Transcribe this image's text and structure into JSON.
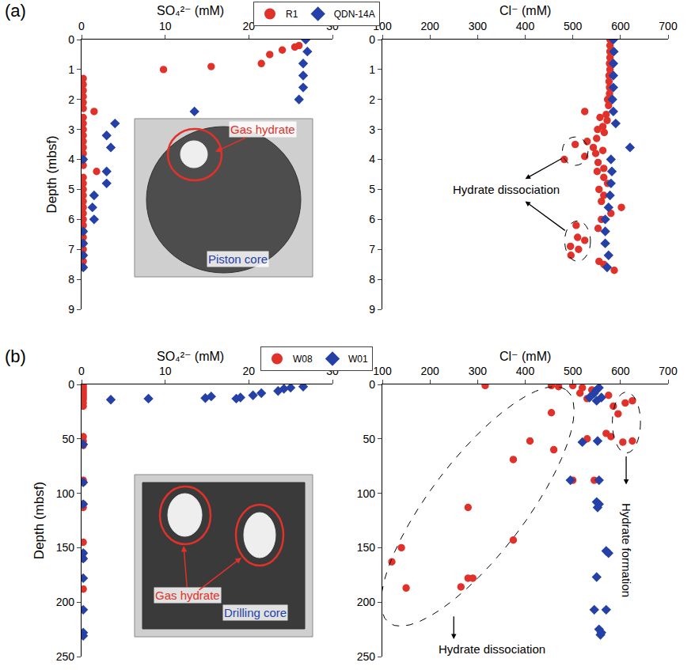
{
  "chart_data": [
    {
      "panel": "(a)",
      "type": "scatter",
      "x_label": "SO₄²⁻ (mM)",
      "y_label": "Depth (mbsf)",
      "xlim": [
        0,
        30
      ],
      "xticks": [
        0,
        10,
        20,
        30
      ],
      "ylim": [
        0,
        9
      ],
      "yticks": [
        0,
        1,
        2,
        3,
        4,
        5,
        6,
        7,
        8,
        9
      ],
      "legend": "top",
      "inset": {
        "hydrate": "Gas hydrate",
        "core": "Piston core"
      },
      "series": [
        {
          "name": "R1",
          "color": "#e0322a",
          "marker": "open-circle",
          "x": [
            26,
            25.5,
            24,
            22.5,
            21.5,
            15.5,
            9.8,
            0.2,
            0.2,
            0.2,
            0.2,
            0.2,
            0.2,
            1.5,
            0.2,
            0.2,
            0.2,
            0.2,
            0.2,
            0.2,
            0.2,
            0.2,
            0.2,
            1.8,
            0.2,
            0.2,
            0.2,
            0.2,
            0.2,
            0.2,
            0.2,
            0.2,
            0.2,
            0.2,
            0.2,
            0.2,
            0.2,
            0.2,
            0.2,
            0.2
          ],
          "y": [
            0.2,
            0.25,
            0.35,
            0.5,
            0.8,
            0.9,
            1.0,
            1.3,
            1.5,
            1.7,
            1.9,
            2.1,
            2.3,
            2.4,
            2.6,
            2.8,
            3.0,
            3.2,
            3.4,
            3.6,
            3.8,
            4.0,
            4.2,
            4.4,
            4.6,
            4.8,
            5.0,
            5.2,
            5.4,
            5.6,
            5.8,
            6.0,
            6.2,
            6.4,
            6.6,
            6.8,
            7.0,
            7.2,
            7.4,
            7.6
          ]
        },
        {
          "name": "QDN-14A",
          "color": "#2541a8",
          "marker": "diamond",
          "x": [
            26.8,
            27,
            26.5,
            26.5,
            26.5,
            26,
            13.5,
            4,
            3,
            3.5,
            0.2,
            3,
            3,
            1.5,
            1.3,
            1.5,
            0.2,
            0.2,
            0.2,
            0.2
          ],
          "y": [
            0.0,
            0.4,
            0.8,
            1.2,
            1.6,
            2.0,
            2.4,
            2.8,
            3.2,
            3.6,
            4.0,
            4.4,
            4.8,
            5.2,
            5.6,
            6.0,
            6.4,
            6.8,
            7.2,
            7.6
          ]
        }
      ]
    },
    {
      "type": "scatter",
      "x_label": "Cl⁻ (mM)",
      "xlim": [
        100,
        700
      ],
      "xticks": [
        100,
        200,
        300,
        400,
        500,
        600,
        700
      ],
      "ylim": [
        0,
        9
      ],
      "yticks": [
        0,
        1,
        2,
        3,
        4,
        5,
        6,
        7,
        8,
        9
      ],
      "annotations": [
        {
          "text": "Hydrate dissociation"
        }
      ],
      "series": [
        {
          "name": "R1",
          "color": "#e0322a",
          "marker": "open-circle",
          "x": [
            578,
            578,
            578,
            578,
            577,
            578,
            576,
            576,
            577,
            577,
            573,
            575,
            525,
            570,
            557,
            572,
            563,
            552,
            566,
            550,
            530,
            505,
            543,
            563,
            548,
            525,
            482,
            553,
            565,
            551,
            565,
            573,
            555,
            565,
            560,
            602,
            580,
            560,
            507,
            553,
            510,
            525,
            495,
            512,
            496,
            555,
            565,
            587
          ],
          "y": [
            0.0,
            0.2,
            0.4,
            0.6,
            0.8,
            1.0,
            1.2,
            1.4,
            1.6,
            1.8,
            2.0,
            2.2,
            2.4,
            2.5,
            2.6,
            2.7,
            2.9,
            3.0,
            3.1,
            3.3,
            3.4,
            3.5,
            3.6,
            3.7,
            3.8,
            3.9,
            4.0,
            4.1,
            4.3,
            4.4,
            4.6,
            4.8,
            5.0,
            5.2,
            5.4,
            5.6,
            5.8,
            6.0,
            6.2,
            6.3,
            6.6,
            6.7,
            6.9,
            7.0,
            7.2,
            7.4,
            7.5,
            7.7
          ]
        },
        {
          "name": "QDN-14A",
          "color": "#2541a8",
          "marker": "diamond",
          "x": [
            585,
            586,
            585,
            585,
            585,
            583,
            585,
            590,
            620,
            580,
            582,
            580,
            578,
            575,
            568,
            568,
            568,
            575,
            572
          ],
          "y": [
            0.0,
            0.4,
            0.8,
            1.2,
            1.6,
            2.0,
            2.4,
            2.8,
            3.6,
            4.0,
            4.4,
            4.8,
            5.2,
            5.6,
            6.0,
            6.4,
            6.8,
            7.2,
            7.6
          ]
        }
      ]
    },
    {
      "panel": "(b)",
      "type": "scatter",
      "x_label": "SO₄²⁻ (mM)",
      "y_label": "Depth (mbsf)",
      "xlim": [
        0,
        30
      ],
      "xticks": [
        0,
        10,
        20,
        30
      ],
      "ylim": [
        0,
        250
      ],
      "yticks": [
        0,
        50,
        100,
        150,
        200,
        250
      ],
      "legend": "top",
      "inset": {
        "hydrate": "Gas hydrate",
        "core": "Drilling core"
      },
      "series": [
        {
          "name": "W08",
          "color": "#e0322a",
          "marker": "open-circle",
          "x": [
            0.2,
            0.2,
            0.2,
            0.2,
            0.2,
            0.2,
            0.2,
            0.2,
            0.2,
            0.2,
            0.2,
            0.2,
            0.2,
            0.2,
            0.2,
            0.2,
            0.2,
            0.2,
            0.2,
            0.2,
            0.2
          ],
          "y": [
            0,
            2,
            4,
            6,
            8,
            10,
            12,
            14,
            17,
            20,
            48,
            52,
            56,
            88,
            90,
            110,
            113,
            145,
            155,
            160,
            188
          ]
        },
        {
          "name": "W01",
          "color": "#2541a8",
          "marker": "diamond",
          "x": [
            26.5,
            25,
            24.2,
            23.5,
            21.5,
            20.5,
            19,
            18.5,
            15.5,
            14.8,
            8,
            3.5,
            0.2,
            0.2,
            0.2,
            0.2,
            0.2,
            0.2,
            0.2,
            0.2,
            0.2
          ],
          "y": [
            2,
            3,
            4,
            6,
            8,
            10,
            12,
            13,
            11,
            12.5,
            13,
            14,
            55,
            90,
            110,
            155,
            160,
            178,
            207,
            228,
            231
          ]
        }
      ]
    },
    {
      "type": "scatter",
      "x_label": "Cl⁻ (mM)",
      "xlim": [
        100,
        700
      ],
      "xticks": [
        100,
        200,
        300,
        400,
        500,
        600,
        700
      ],
      "ylim": [
        0,
        250
      ],
      "yticks": [
        0,
        50,
        100,
        150,
        200,
        250
      ],
      "annotations": [
        {
          "text": "Hydrate dissociation"
        },
        {
          "text": "Hydrate formation"
        }
      ],
      "series": [
        {
          "name": "W08",
          "color": "#e0322a",
          "marker": "open-circle",
          "x": [
            316,
            455,
            470,
            500,
            520,
            540,
            515,
            530,
            575,
            610,
            625,
            585,
            595,
            455,
            625,
            605,
            570,
            580,
            530,
            410,
            460,
            375,
            500,
            545,
            280,
            375,
            140,
            120,
            150,
            280,
            265,
            290
          ],
          "y": [
            1,
            1,
            2,
            1,
            3,
            5,
            8,
            13,
            10,
            17,
            15,
            20,
            27,
            26,
            52,
            53,
            45,
            48,
            50,
            52,
            60,
            69,
            88,
            88,
            113,
            143,
            150,
            163,
            187,
            178,
            186,
            178
          ]
        },
        {
          "name": "W01",
          "color": "#2541a8",
          "marker": "diamond",
          "x": [
            555,
            550,
            545,
            535,
            560,
            550,
            520,
            552,
            495,
            555,
            550,
            555,
            552,
            570,
            575,
            550,
            545,
            570,
            555,
            560,
            558
          ],
          "y": [
            3,
            5,
            8,
            12,
            12,
            15,
            53,
            52,
            88,
            88,
            108,
            110,
            113,
            153,
            155,
            177,
            207,
            207,
            225,
            228,
            230
          ]
        }
      ]
    }
  ]
}
